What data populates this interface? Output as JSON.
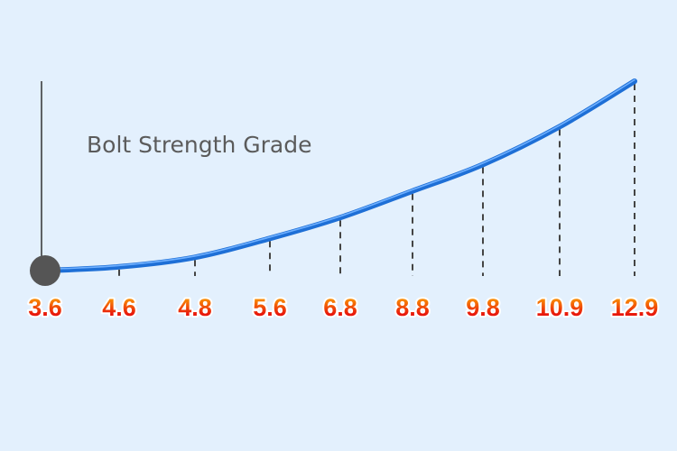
{
  "chart_data": {
    "type": "line",
    "title": "Bolt Strength Grade",
    "xlabel": "",
    "ylabel": "",
    "categories": [
      "3.6",
      "4.6",
      "4.8",
      "5.6",
      "6.8",
      "8.8",
      "9.8",
      "10.9",
      "12.9"
    ],
    "series": [
      {
        "values": [
          0.0,
          0.02,
          0.07,
          0.17,
          0.28,
          0.42,
          0.56,
          0.76,
          1.0
        ]
      }
    ],
    "ylim": [
      0,
      1
    ],
    "grid": false,
    "legend": "none",
    "colors": {
      "line": "#1e6fd6",
      "line_highlight": "#6fb0ff",
      "axis": "#333333",
      "drop_lines": "#444444",
      "origin_marker": "#555555",
      "tick_label_top": "#ffb300",
      "tick_label_bottom": "#e8160c",
      "title": "#5b5b5b",
      "background": "#e3f0fd"
    }
  }
}
